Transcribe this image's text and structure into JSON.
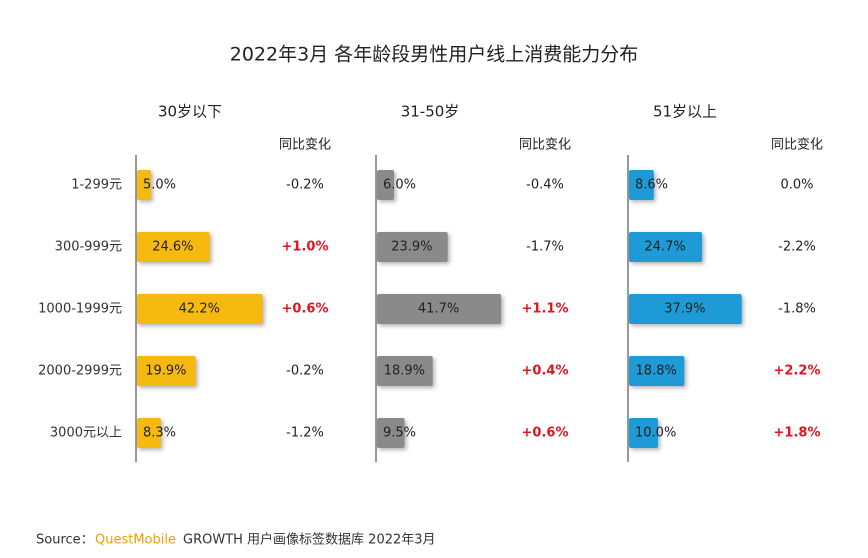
{
  "title": "2022年3月 各年龄段男性用户线上消费能力分布",
  "source": {
    "label": "Source：",
    "brand": "QuestMobile",
    "text": "GROWTH 用户画像标签数据库 2022年3月"
  },
  "chart_data": [
    {
      "type": "bar",
      "orientation": "horizontal",
      "subtitle": "30岁以下",
      "color": "#f6b90f",
      "categories": [
        "1-299元",
        "300-999元",
        "1000-1999元",
        "2000-2999元",
        "3000元以上"
      ],
      "values": [
        5.0,
        24.6,
        42.2,
        19.9,
        8.3
      ],
      "value_labels": [
        "5.0%",
        "24.6%",
        "42.2%",
        "19.9%",
        "8.3%"
      ],
      "xlim": [
        0,
        45
      ],
      "change_header": "同比变化",
      "changes": [
        -0.2,
        1.0,
        0.6,
        -0.2,
        -1.2
      ],
      "change_labels": [
        "-0.2%",
        "+1.0%",
        "+0.6%",
        "-0.2%",
        "-1.2%"
      ]
    },
    {
      "type": "bar",
      "orientation": "horizontal",
      "subtitle": "31-50岁",
      "color": "#8a8a8a",
      "values": [
        6.0,
        23.9,
        41.7,
        18.9,
        9.5
      ],
      "value_labels": [
        "6.0%",
        "23.9%",
        "41.7%",
        "18.9%",
        "9.5%"
      ],
      "xlim": [
        0,
        45
      ],
      "change_header": "同比变化",
      "changes": [
        -0.4,
        -1.7,
        1.1,
        0.4,
        0.6
      ],
      "change_labels": [
        "-0.4%",
        "-1.7%",
        "+1.1%",
        "+0.4%",
        "+0.6%"
      ]
    },
    {
      "type": "bar",
      "orientation": "horizontal",
      "subtitle": "51岁以上",
      "color": "#1e9bd7",
      "values": [
        8.6,
        24.7,
        37.9,
        18.8,
        10.0
      ],
      "value_labels": [
        "8.6%",
        "24.7%",
        "37.9%",
        "18.8%",
        "10.0%"
      ],
      "xlim": [
        0,
        45
      ],
      "change_header": "同比变化",
      "changes": [
        0.0,
        -2.2,
        -1.8,
        2.2,
        1.8
      ],
      "change_labels": [
        "0.0%",
        "-2.2%",
        "-1.8%",
        "+2.2%",
        "+1.8%"
      ]
    }
  ]
}
